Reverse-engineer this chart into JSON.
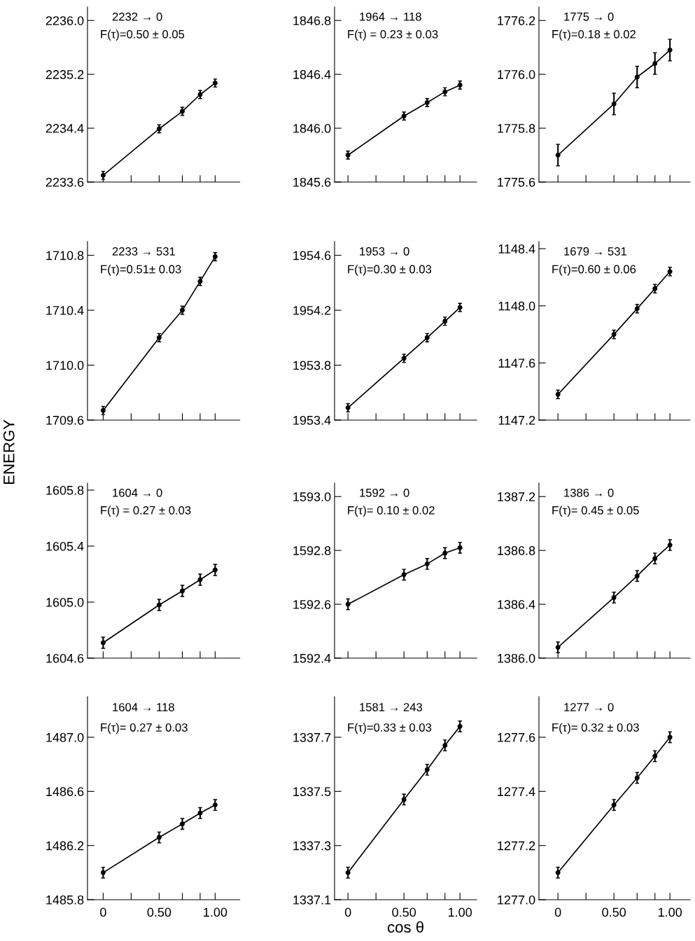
{
  "chart_data": [
    {
      "type": "line",
      "title": "2232 → 0",
      "subtitle": "F(τ)=0.50 ± 0.05",
      "x": [
        0,
        0.5,
        0.707,
        0.866,
        1.0
      ],
      "series": [
        {
          "color": "#000000",
          "values": [
            2233.7,
            2234.39,
            2234.65,
            2234.9,
            2235.07
          ],
          "errors": [
            0.06,
            0.06,
            0.06,
            0.06,
            0.06
          ]
        }
      ],
      "marker": "circle",
      "xlim": [
        -0.14,
        1.22
      ],
      "xticks": [
        {
          "value": 0,
          "label": null
        },
        {
          "value": 0.25,
          "label": null
        },
        {
          "value": 0.5,
          "label": null
        },
        {
          "value": 0.707,
          "label": null
        },
        {
          "value": 0.866,
          "label": null
        },
        {
          "value": 1.0,
          "label": null
        }
      ],
      "ylim": [
        2233.6,
        2236.2
      ],
      "yticks": [
        2233.6,
        2234.4,
        2235.2,
        {
          "value": 2236.0,
          "label": "2236.0"
        }
      ],
      "tick_labels": "y",
      "grid": false,
      "legend": false
    },
    {
      "type": "line",
      "title": "1964 → 118",
      "subtitle": "F(τ) = 0.23 ± 0.03",
      "x": [
        0,
        0.5,
        0.707,
        0.866,
        1.0
      ],
      "series": [
        {
          "color": "#000000",
          "values": [
            1845.8,
            1846.09,
            1846.19,
            1846.27,
            1846.32
          ],
          "errors": [
            0.03,
            0.03,
            0.03,
            0.03,
            0.03
          ]
        }
      ],
      "marker": "circle",
      "xlim": [
        -0.12,
        1.15
      ],
      "xticks": [
        {
          "value": 0,
          "label": null
        },
        {
          "value": 0.25,
          "label": null
        },
        {
          "value": 0.5,
          "label": null
        },
        {
          "value": 0.707,
          "label": null
        },
        {
          "value": 0.866,
          "label": null
        },
        {
          "value": 1.0,
          "label": null
        }
      ],
      "ylim": [
        1845.6,
        1846.9
      ],
      "yticks": [
        1845.6,
        {
          "value": 1846.0,
          "label": "1846.0"
        },
        1846.4,
        1846.8
      ],
      "tick_labels": "y",
      "grid": false,
      "legend": false
    },
    {
      "type": "line",
      "title": "1775 → 0",
      "subtitle": "F(τ)=0.18 ± 0.02",
      "x": [
        0,
        0.5,
        0.707,
        0.866,
        1.0
      ],
      "series": [
        {
          "color": "#000000",
          "values": [
            1775.7,
            1775.89,
            1775.99,
            1776.04,
            1776.09
          ],
          "errors": [
            0.04,
            0.04,
            0.04,
            0.04,
            0.04
          ]
        }
      ],
      "marker": "circle",
      "xlim": [
        -0.17,
        1.18
      ],
      "xticks": [
        {
          "value": 0,
          "label": null
        },
        {
          "value": 0.25,
          "label": null
        },
        {
          "value": 0.5,
          "label": null
        },
        {
          "value": 0.707,
          "label": null
        },
        {
          "value": 0.866,
          "label": null
        },
        {
          "value": 1.0,
          "label": null
        }
      ],
      "ylim": [
        1775.6,
        1776.25
      ],
      "yticks": [
        1775.6,
        1775.8,
        {
          "value": 1776.0,
          "label": "1776.0"
        },
        1776.2
      ],
      "tick_labels": "y",
      "grid": false,
      "legend": false
    },
    {
      "type": "line",
      "title": "2233 → 531",
      "subtitle": "F(τ)=0.51± 0.03",
      "ylabel": "ENERGY",
      "x": [
        0,
        0.5,
        0.707,
        0.866,
        1.0
      ],
      "series": [
        {
          "color": "#000000",
          "values": [
            1709.67,
            1710.2,
            1710.4,
            1710.61,
            1710.79
          ],
          "errors": [
            0.03,
            0.03,
            0.03,
            0.03,
            0.03
          ]
        }
      ],
      "marker": "circle",
      "xlim": [
        -0.14,
        1.22
      ],
      "xticks": [
        {
          "value": 0,
          "label": null
        },
        {
          "value": 0.25,
          "label": null
        },
        {
          "value": 0.5,
          "label": null
        },
        {
          "value": 0.707,
          "label": null
        },
        {
          "value": 0.866,
          "label": null
        },
        {
          "value": 1.0,
          "label": null
        }
      ],
      "ylim": [
        1709.6,
        1710.9
      ],
      "yticks": [
        1709.6,
        {
          "value": 1710.0,
          "label": "1710.0"
        },
        1710.4,
        1710.8
      ],
      "tick_labels": "y",
      "grid": false,
      "legend": false
    },
    {
      "type": "line",
      "title": "1953 → 0",
      "subtitle": "F(τ)=0.30 ± 0.03",
      "x": [
        0,
        0.5,
        0.707,
        0.866,
        1.0
      ],
      "series": [
        {
          "color": "#000000",
          "values": [
            1953.49,
            1953.85,
            1954.0,
            1954.12,
            1954.22
          ],
          "errors": [
            0.03,
            0.03,
            0.03,
            0.03,
            0.03
          ]
        }
      ],
      "marker": "circle",
      "xlim": [
        -0.12,
        1.15
      ],
      "xticks": [
        {
          "value": 0,
          "label": null
        },
        {
          "value": 0.25,
          "label": null
        },
        {
          "value": 0.5,
          "label": null
        },
        {
          "value": 0.707,
          "label": null
        },
        {
          "value": 0.866,
          "label": null
        },
        {
          "value": 1.0,
          "label": null
        }
      ],
      "ylim": [
        1953.4,
        1954.7
      ],
      "yticks": [
        1953.4,
        1953.8,
        1954.2,
        1954.6
      ],
      "tick_labels": "y",
      "grid": false,
      "legend": false
    },
    {
      "type": "line",
      "title": "1679 → 531",
      "subtitle": "F(τ)=0.60 ± 0.06",
      "x": [
        0,
        0.5,
        0.707,
        0.866,
        1.0
      ],
      "series": [
        {
          "color": "#000000",
          "values": [
            1147.38,
            1147.8,
            1147.98,
            1148.12,
            1148.24
          ],
          "errors": [
            0.03,
            0.03,
            0.03,
            0.03,
            0.03
          ]
        }
      ],
      "marker": "circle",
      "xlim": [
        -0.17,
        1.18
      ],
      "xticks": [
        {
          "value": 0,
          "label": null
        },
        {
          "value": 0.25,
          "label": null
        },
        {
          "value": 0.5,
          "label": null
        },
        {
          "value": 0.707,
          "label": null
        },
        {
          "value": 0.866,
          "label": null
        },
        {
          "value": 1.0,
          "label": null
        }
      ],
      "ylim": [
        1147.2,
        1148.45
      ],
      "yticks": [
        1147.2,
        1147.6,
        {
          "value": 1148.0,
          "label": "1148.0"
        },
        1148.4
      ],
      "tick_labels": "y",
      "grid": false,
      "legend": false
    },
    {
      "type": "line",
      "title": "1604 → 0",
      "subtitle": "F(τ) = 0.27 ± 0.03",
      "x": [
        0,
        0.5,
        0.707,
        0.866,
        1.0
      ],
      "series": [
        {
          "color": "#000000",
          "values": [
            1604.71,
            1604.98,
            1605.08,
            1605.16,
            1605.23
          ],
          "errors": [
            0.04,
            0.04,
            0.04,
            0.04,
            0.04
          ]
        }
      ],
      "marker": "circle",
      "xlim": [
        -0.14,
        1.22
      ],
      "xticks": [
        {
          "value": 0,
          "label": null
        },
        {
          "value": 0.25,
          "label": null
        },
        {
          "value": 0.5,
          "label": null
        },
        {
          "value": 0.707,
          "label": null
        },
        {
          "value": 0.866,
          "label": null
        },
        {
          "value": 1.0,
          "label": null
        }
      ],
      "ylim": [
        1604.6,
        1605.85
      ],
      "yticks": [
        1604.6,
        {
          "value": 1605.0,
          "label": "1605.0"
        },
        1605.4,
        1605.8
      ],
      "tick_labels": "y",
      "grid": false,
      "legend": false
    },
    {
      "type": "line",
      "title": "1592 → 0",
      "subtitle": "F(τ)= 0.10 ± 0.02",
      "x": [
        0,
        0.5,
        0.707,
        0.866,
        1.0
      ],
      "series": [
        {
          "color": "#000000",
          "values": [
            1592.6,
            1592.71,
            1592.75,
            1592.79,
            1592.81
          ],
          "errors": [
            0.02,
            0.02,
            0.02,
            0.02,
            0.02
          ]
        }
      ],
      "marker": "circle",
      "xlim": [
        -0.12,
        1.15
      ],
      "xticks": [
        {
          "value": 0,
          "label": null
        },
        {
          "value": 0.25,
          "label": null
        },
        {
          "value": 0.5,
          "label": null
        },
        {
          "value": 0.707,
          "label": null
        },
        {
          "value": 0.866,
          "label": null
        },
        {
          "value": 1.0,
          "label": null
        }
      ],
      "ylim": [
        1592.4,
        1593.05
      ],
      "yticks": [
        1592.4,
        1592.6,
        1592.8,
        {
          "value": 1593.0,
          "label": "1593.0"
        }
      ],
      "tick_labels": "y",
      "grid": false,
      "legend": false
    },
    {
      "type": "line",
      "title": "1386 → 0",
      "subtitle": "F(τ)= 0.45 ± 0.05",
      "x": [
        0,
        0.5,
        0.707,
        0.866,
        1.0
      ],
      "series": [
        {
          "color": "#000000",
          "values": [
            1386.08,
            1386.45,
            1386.61,
            1386.74,
            1386.84
          ],
          "errors": [
            0.04,
            0.04,
            0.04,
            0.04,
            0.04
          ]
        }
      ],
      "marker": "circle",
      "xlim": [
        -0.17,
        1.18
      ],
      "xticks": [
        {
          "value": 0,
          "label": null
        },
        {
          "value": 0.25,
          "label": null
        },
        {
          "value": 0.5,
          "label": null
        },
        {
          "value": 0.707,
          "label": null
        },
        {
          "value": 0.866,
          "label": null
        },
        {
          "value": 1.0,
          "label": null
        }
      ],
      "ylim": [
        1386.0,
        1387.3
      ],
      "yticks": [
        {
          "value": 1386.0,
          "label": "1386.0"
        },
        1386.4,
        1386.8,
        1387.2
      ],
      "tick_labels": "y",
      "grid": false,
      "legend": false
    },
    {
      "type": "line",
      "title": "1604 → 118",
      "subtitle": "F(τ)= 0.27 ± 0.03",
      "x": [
        0,
        0.5,
        0.707,
        0.866,
        1.0
      ],
      "series": [
        {
          "color": "#000000",
          "values": [
            1486.0,
            1486.26,
            1486.36,
            1486.44,
            1486.5
          ],
          "errors": [
            0.04,
            0.04,
            0.04,
            0.04,
            0.04
          ]
        }
      ],
      "marker": "circle",
      "xlim": [
        -0.14,
        1.22
      ],
      "xticks": [
        {
          "value": 0,
          "label": "0"
        },
        {
          "value": 0.25,
          "label": null
        },
        {
          "value": 0.5,
          "label": "0.50"
        },
        {
          "value": 0.707,
          "label": null
        },
        {
          "value": 0.866,
          "label": null
        },
        {
          "value": 1.0,
          "label": "1.00"
        }
      ],
      "ylim": [
        1485.8,
        1487.3
      ],
      "yticks": [
        1485.8,
        1486.2,
        1486.6,
        {
          "value": 1487.0,
          "label": "1487.0"
        }
      ],
      "grid": false,
      "legend": false
    },
    {
      "type": "line",
      "title": "1581 → 243",
      "subtitle": "F(τ)=0.33 ± 0.03",
      "xlabel": "cos θ",
      "x": [
        0,
        0.5,
        0.707,
        0.866,
        1.0
      ],
      "series": [
        {
          "color": "#000000",
          "values": [
            1337.2,
            1337.47,
            1337.58,
            1337.67,
            1337.74
          ],
          "errors": [
            0.02,
            0.02,
            0.02,
            0.02,
            0.02
          ]
        }
      ],
      "marker": "circle",
      "xlim": [
        -0.12,
        1.15
      ],
      "xticks": [
        {
          "value": 0,
          "label": "0"
        },
        {
          "value": 0.25,
          "label": null
        },
        {
          "value": 0.5,
          "label": "0.50"
        },
        {
          "value": 0.707,
          "label": null
        },
        {
          "value": 0.866,
          "label": null
        },
        {
          "value": 1.0,
          "label": "1.00"
        }
      ],
      "ylim": [
        1337.1,
        1337.85
      ],
      "yticks": [
        1337.1,
        1337.3,
        1337.5,
        1337.7
      ],
      "grid": false,
      "legend": false
    },
    {
      "type": "line",
      "title": "1277 → 0",
      "subtitle": "F(τ)= 0.32 ± 0.03",
      "x": [
        0,
        0.5,
        0.707,
        0.866,
        1.0
      ],
      "series": [
        {
          "color": "#000000",
          "values": [
            1277.1,
            1277.35,
            1277.45,
            1277.53,
            1277.6
          ],
          "errors": [
            0.02,
            0.02,
            0.02,
            0.02,
            0.02
          ]
        }
      ],
      "marker": "circle",
      "xlim": [
        -0.17,
        1.18
      ],
      "xticks": [
        {
          "value": 0,
          "label": "0"
        },
        {
          "value": 0.25,
          "label": null
        },
        {
          "value": 0.5,
          "label": "0.50"
        },
        {
          "value": 0.707,
          "label": null
        },
        {
          "value": 0.866,
          "label": null
        },
        {
          "value": 1.0,
          "label": "1.00"
        }
      ],
      "ylim": [
        1277.0,
        1277.75
      ],
      "yticks": [
        {
          "value": 1277.0,
          "label": "1277.0"
        },
        1277.2,
        1277.4,
        1277.6
      ],
      "grid": false,
      "legend": false
    }
  ]
}
